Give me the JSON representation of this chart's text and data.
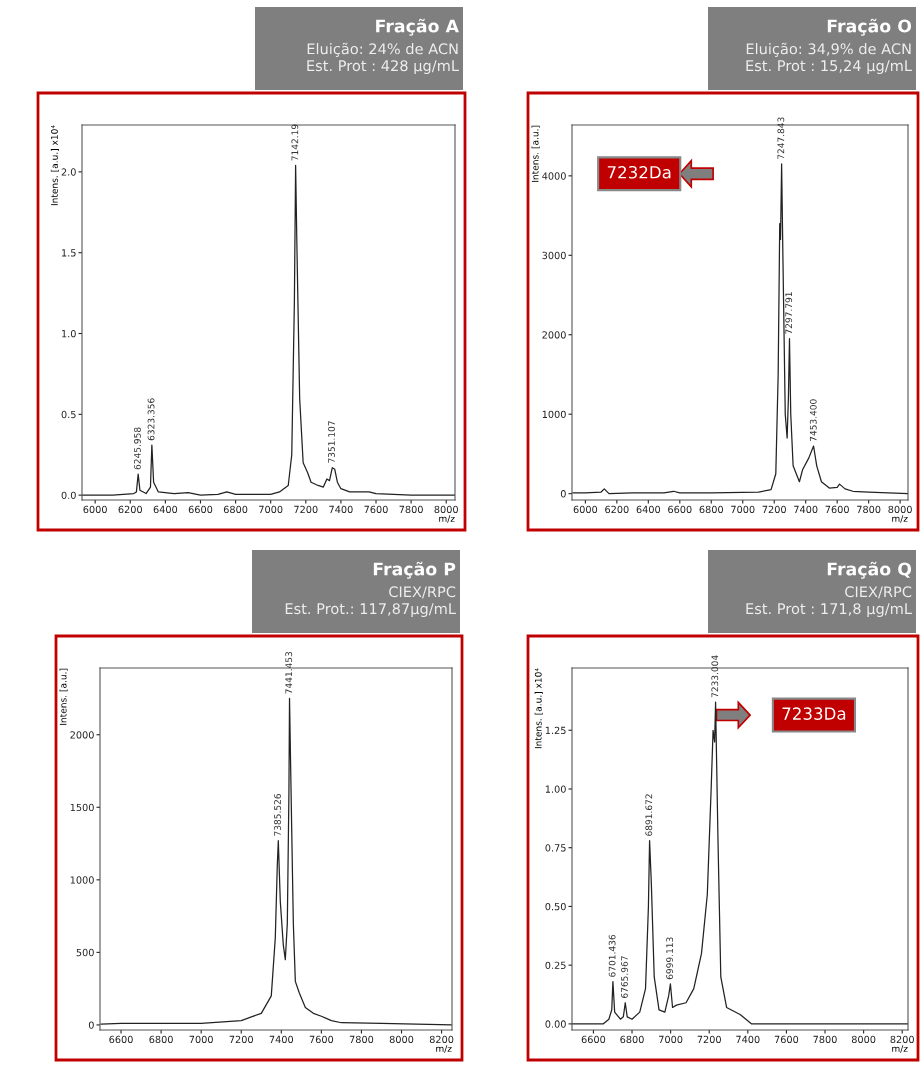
{
  "chart_data": [
    {
      "type": "line",
      "title": "Fração A",
      "subtitle": "Eluição: 24% de ACN\nEst. Prot : 428 µg/mL",
      "xlabel": "m/z",
      "ylabel": "Intens. [a.u.] x10⁴",
      "x": [
        5925,
        6100,
        6220,
        6235,
        6245,
        6255,
        6290,
        6315,
        6323,
        6333,
        6360,
        6450,
        6530,
        6600,
        6700,
        6750,
        6800,
        7000,
        7050,
        7100,
        7120,
        7135,
        7142,
        7150,
        7165,
        7185,
        7210,
        7230,
        7270,
        7300,
        7320,
        7335,
        7351,
        7365,
        7380,
        7400,
        7450,
        7560,
        7600,
        7800,
        8050
      ],
      "series": [
        {
          "color": "#222222",
          "values": [
            0.0,
            0.0,
            0.01,
            0.02,
            0.13,
            0.03,
            0.01,
            0.05,
            0.31,
            0.08,
            0.02,
            0.01,
            0.015,
            0.0,
            0.005,
            0.02,
            0.005,
            0.005,
            0.02,
            0.06,
            0.25,
            1.2,
            2.04,
            1.5,
            0.6,
            0.2,
            0.14,
            0.08,
            0.06,
            0.05,
            0.1,
            0.09,
            0.17,
            0.16,
            0.08,
            0.04,
            0.02,
            0.02,
            0.01,
            0.0,
            0.0
          ]
        }
      ],
      "annotations": [
        {
          "text": "6245.958",
          "x": 6245,
          "y": 0.13
        },
        {
          "text": "6323.356",
          "x": 6323,
          "y": 0.31
        },
        {
          "text": "7142.19",
          "x": 7142,
          "y": 2.04
        },
        {
          "text": "7351.107",
          "x": 7351,
          "y": 0.17
        }
      ],
      "xlim": [
        5925,
        8050
      ],
      "ylim": [
        -0.03,
        2.29
      ],
      "xticks": [
        6000,
        6200,
        6400,
        6600,
        6800,
        7000,
        7200,
        7400,
        7600,
        7800,
        8000
      ],
      "yticks": [
        {
          "value": 0.0,
          "label": "0.0"
        },
        {
          "value": 0.5,
          "label": "0.5"
        },
        {
          "value": 1.0,
          "label": "1.0"
        },
        {
          "value": 1.5,
          "label": "1.5"
        },
        {
          "value": 2.0,
          "label": "2.0"
        }
      ],
      "grid": false,
      "legend": false,
      "line_style": "solid",
      "marker": "none"
    },
    {
      "type": "line",
      "title": "Fração O",
      "subtitle": "Eluição: 34,9% de ACN\nEst. Prot : 15,24 µg/mL",
      "xlabel": "m/z",
      "ylabel": "Intens. [a.u.]",
      "x": [
        5920,
        6000,
        6100,
        6120,
        6150,
        6300,
        6500,
        6560,
        6600,
        6800,
        7100,
        7180,
        7210,
        7225,
        7235,
        7240,
        7247,
        7255,
        7270,
        7282,
        7290,
        7297,
        7305,
        7320,
        7340,
        7360,
        7380,
        7420,
        7450,
        7470,
        7500,
        7550,
        7600,
        7615,
        7650,
        7700,
        7800,
        8050
      ],
      "series": [
        {
          "color": "#222222",
          "values": [
            10,
            10,
            20,
            60,
            0,
            10,
            10,
            30,
            10,
            10,
            20,
            50,
            250,
            1500,
            3400,
            3200,
            4150,
            3000,
            1000,
            700,
            1200,
            1950,
            1000,
            350,
            250,
            150,
            300,
            450,
            600,
            350,
            150,
            70,
            80,
            120,
            60,
            30,
            20,
            0
          ]
        }
      ],
      "annotations": [
        "7232Da",
        {
          "text": "7247.843",
          "x": 7247,
          "y": 4150
        },
        {
          "text": "7297.791",
          "x": 7297,
          "y": 1950
        },
        {
          "text": "7453.400",
          "x": 7453,
          "y": 600
        }
      ],
      "xlim": [
        5915,
        8050
      ],
      "ylim": [
        -80,
        4640
      ],
      "xticks": [
        6000,
        6200,
        6400,
        6600,
        6800,
        7000,
        7200,
        7400,
        7600,
        7800,
        8000
      ],
      "yticks": [
        0,
        1000,
        2000,
        3000,
        4000
      ],
      "grid": false,
      "legend": false,
      "line_style": "solid",
      "marker": "none"
    },
    {
      "type": "line",
      "title": "Fração P",
      "subtitle": "CIEX/RPC\nEst. Prot.: 117,87µg/mL",
      "xlabel": "m/z",
      "ylabel": "Intens. [a.u.]",
      "x": [
        6500,
        6600,
        6800,
        7000,
        7200,
        7300,
        7350,
        7370,
        7380,
        7385,
        7395,
        7410,
        7420,
        7430,
        7438,
        7441,
        7450,
        7460,
        7470,
        7490,
        7520,
        7560,
        7600,
        7650,
        7700,
        7900,
        8250
      ],
      "series": [
        {
          "color": "#222222",
          "values": [
            5,
            10,
            10,
            10,
            30,
            80,
            200,
            600,
            1100,
            1270,
            850,
            550,
            450,
            700,
            1600,
            2250,
            1500,
            700,
            300,
            220,
            120,
            80,
            60,
            30,
            15,
            10,
            0
          ]
        }
      ],
      "annotations": [
        {
          "text": "7385.526",
          "x": 7385,
          "y": 1270
        },
        {
          "text": "7441.453",
          "x": 7441,
          "y": 2250
        }
      ],
      "xlim": [
        6495,
        8252
      ],
      "ylim": [
        -35,
        2460
      ],
      "xticks": [
        6600,
        6800,
        7000,
        7200,
        7400,
        7600,
        7800,
        8000,
        8200
      ],
      "yticks": [
        0,
        500,
        1000,
        1500,
        2000
      ],
      "grid": false,
      "legend": false,
      "line_style": "solid",
      "marker": "none"
    },
    {
      "type": "line",
      "title": "Fração Q",
      "subtitle": "CIEX/RPC\nEst. Prot : 171,8 µg/mL",
      "xlabel": "m/z",
      "ylabel": "Intens. [a.u.] x10⁴",
      "x": [
        6490,
        6650,
        6680,
        6695,
        6701,
        6710,
        6740,
        6755,
        6765,
        6775,
        6800,
        6840,
        6870,
        6885,
        6891,
        6900,
        6915,
        6940,
        6970,
        6990,
        6999,
        7010,
        7030,
        7080,
        7120,
        7160,
        7190,
        7210,
        7220,
        7228,
        7233,
        7245,
        7260,
        7290,
        7360,
        7390,
        7420,
        7800,
        8230
      ],
      "series": [
        {
          "color": "#222222",
          "values": [
            0.0,
            0.0,
            0.02,
            0.06,
            0.18,
            0.05,
            0.02,
            0.03,
            0.09,
            0.03,
            0.02,
            0.05,
            0.15,
            0.5,
            0.78,
            0.6,
            0.2,
            0.06,
            0.05,
            0.12,
            0.17,
            0.07,
            0.08,
            0.09,
            0.15,
            0.3,
            0.55,
            1.0,
            1.25,
            1.2,
            1.37,
            0.8,
            0.2,
            0.07,
            0.04,
            0.02,
            0.0,
            0.0,
            0.0
          ]
        }
      ],
      "annotations": [
        "7233Da",
        {
          "text": "6701.436",
          "x": 6701,
          "y": 0.18
        },
        {
          "text": "6765.967",
          "x": 6765,
          "y": 0.09
        },
        {
          "text": "6891.672",
          "x": 6891,
          "y": 0.78
        },
        {
          "text": "6999.113",
          "x": 6999,
          "y": 0.17
        },
        {
          "text": "7233.004",
          "x": 7233,
          "y": 1.37
        }
      ],
      "xlim": [
        6489,
        8230
      ],
      "ylim": [
        -0.026,
        1.515
      ],
      "xticks": [
        6600,
        6800,
        7000,
        7200,
        7400,
        7600,
        7800,
        8000,
        8200
      ],
      "yticks": [
        {
          "value": 0.0,
          "label": "0.00"
        },
        {
          "value": 0.25,
          "label": "0.25"
        },
        {
          "value": 0.5,
          "label": "0.50"
        },
        {
          "value": 0.75,
          "label": "0.75"
        },
        {
          "value": 1.0,
          "label": "1.00"
        },
        {
          "value": 1.25,
          "label": "1.25"
        }
      ],
      "grid": false,
      "legend": false,
      "line_style": "solid",
      "marker": "none"
    }
  ]
}
